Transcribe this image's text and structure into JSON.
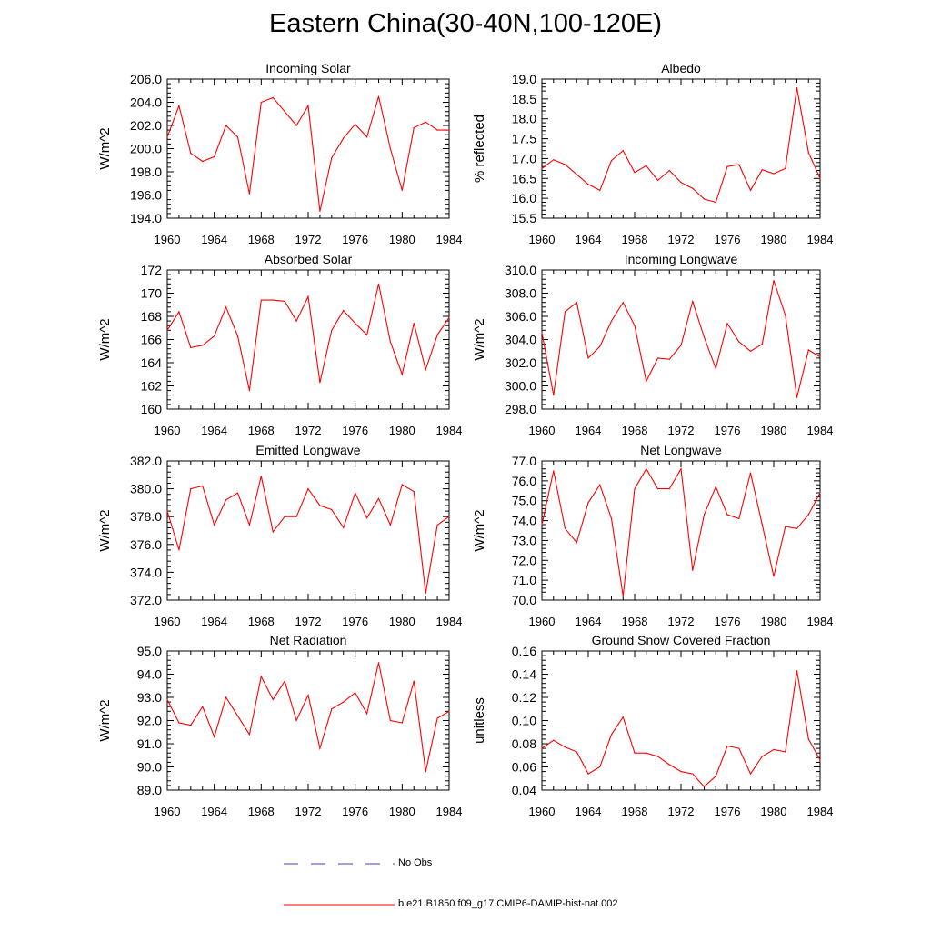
{
  "title": "Eastern China(30-40N,100-120E)",
  "colors": {
    "model_line": "#ff0000",
    "obs_line": "#4040c0",
    "axis": "#000000"
  },
  "legend": [
    {
      "label": "No Obs",
      "style": "dashed",
      "color": "#4040c0"
    },
    {
      "label": "b.e21.B1850.f09_g17.CMIP6-DAMIP-hist-nat.002",
      "style": "solid",
      "color": "#ff0000"
    }
  ],
  "chart_data": [
    {
      "type": "line",
      "title": "Incoming Solar",
      "xlabel": "",
      "ylabel": "W/m^2",
      "xlim": [
        1960,
        1984
      ],
      "xticks": [
        1960,
        1964,
        1968,
        1972,
        1976,
        1980,
        1984
      ],
      "ylim": [
        194,
        206
      ],
      "yticks": [
        "194.0",
        "196.0",
        "198.0",
        "200.0",
        "202.0",
        "204.0",
        "206.0"
      ],
      "x": [
        1960,
        1961,
        1962,
        1963,
        1964,
        1965,
        1966,
        1967,
        1968,
        1969,
        1970,
        1971,
        1972,
        1973,
        1974,
        1975,
        1976,
        1977,
        1978,
        1979,
        1980,
        1981,
        1982,
        1983,
        1984
      ],
      "series": [
        {
          "values": [
            201.0,
            203.7,
            199.6,
            198.9,
            199.3,
            202.0,
            201.0,
            196.1,
            204.0,
            204.4,
            203.2,
            202.0,
            203.7,
            194.6,
            199.2,
            200.9,
            202.1,
            201.0,
            204.5,
            200.0,
            196.4,
            201.8,
            202.3,
            201.6,
            201.6
          ]
        }
      ],
      "grid": false
    },
    {
      "type": "line",
      "title": "Albedo",
      "xlabel": "",
      "ylabel": "% reflected",
      "xlim": [
        1960,
        1984
      ],
      "xticks": [
        1960,
        1964,
        1968,
        1972,
        1976,
        1980,
        1984
      ],
      "ylim": [
        15.5,
        19.0
      ],
      "yticks": [
        "15.5",
        "16.0",
        "16.5",
        "17.0",
        "17.5",
        "18.0",
        "18.5",
        "19.0"
      ],
      "x": [
        1960,
        1961,
        1962,
        1963,
        1964,
        1965,
        1966,
        1967,
        1968,
        1969,
        1970,
        1971,
        1972,
        1973,
        1974,
        1975,
        1976,
        1977,
        1978,
        1979,
        1980,
        1981,
        1982,
        1983,
        1984
      ],
      "series": [
        {
          "values": [
            16.75,
            16.97,
            16.85,
            16.6,
            16.35,
            16.2,
            16.95,
            17.2,
            16.65,
            16.82,
            16.45,
            16.7,
            16.4,
            16.25,
            15.98,
            15.9,
            16.8,
            16.85,
            16.2,
            16.72,
            16.62,
            16.75,
            18.78,
            17.15,
            16.5
          ]
        }
      ],
      "grid": false
    },
    {
      "type": "line",
      "title": "Absorbed Solar",
      "xlabel": "",
      "ylabel": "W/m^2",
      "xlim": [
        1960,
        1984
      ],
      "xticks": [
        1960,
        1964,
        1968,
        1972,
        1976,
        1980,
        1984
      ],
      "ylim": [
        160,
        172
      ],
      "yticks": [
        "160",
        "162",
        "164",
        "166",
        "168",
        "170",
        "172"
      ],
      "x": [
        1960,
        1961,
        1962,
        1963,
        1964,
        1965,
        1966,
        1967,
        1968,
        1969,
        1970,
        1971,
        1972,
        1973,
        1974,
        1975,
        1976,
        1977,
        1978,
        1979,
        1980,
        1981,
        1982,
        1983,
        1984
      ],
      "series": [
        {
          "values": [
            166.8,
            168.4,
            165.3,
            165.5,
            166.3,
            168.8,
            166.3,
            161.6,
            169.4,
            169.4,
            169.3,
            167.6,
            169.7,
            162.3,
            166.8,
            168.5,
            167.4,
            166.4,
            170.8,
            165.8,
            163.0,
            167.4,
            163.4,
            166.4,
            167.9
          ]
        }
      ],
      "grid": false
    },
    {
      "type": "line",
      "title": "Incoming Longwave",
      "xlabel": "",
      "ylabel": "W/m^2",
      "xlim": [
        1960,
        1984
      ],
      "xticks": [
        1960,
        1964,
        1968,
        1972,
        1976,
        1980,
        1984
      ],
      "ylim": [
        298,
        310
      ],
      "yticks": [
        "298.0",
        "300.0",
        "302.0",
        "304.0",
        "306.0",
        "308.0",
        "310.0"
      ],
      "x": [
        1960,
        1961,
        1962,
        1963,
        1964,
        1965,
        1966,
        1967,
        1968,
        1969,
        1970,
        1971,
        1972,
        1973,
        1974,
        1975,
        1976,
        1977,
        1978,
        1979,
        1980,
        1981,
        1982,
        1983,
        1984
      ],
      "series": [
        {
          "values": [
            304.6,
            299.2,
            306.4,
            307.2,
            302.4,
            303.4,
            305.6,
            307.2,
            305.2,
            300.4,
            302.4,
            302.3,
            303.5,
            307.3,
            304.2,
            301.5,
            305.4,
            303.8,
            303.0,
            303.6,
            309.1,
            306.1,
            299.0,
            303.1,
            302.5
          ]
        }
      ],
      "grid": false
    },
    {
      "type": "line",
      "title": "Emitted Longwave",
      "xlabel": "",
      "ylabel": "W/m^2",
      "xlim": [
        1960,
        1984
      ],
      "xticks": [
        1960,
        1964,
        1968,
        1972,
        1976,
        1980,
        1984
      ],
      "ylim": [
        372,
        382
      ],
      "yticks": [
        "372.0",
        "374.0",
        "376.0",
        "378.0",
        "380.0",
        "382.0"
      ],
      "x": [
        1960,
        1961,
        1962,
        1963,
        1964,
        1965,
        1966,
        1967,
        1968,
        1969,
        1970,
        1971,
        1972,
        1973,
        1974,
        1975,
        1976,
        1977,
        1978,
        1979,
        1980,
        1981,
        1982,
        1983,
        1984
      ],
      "series": [
        {
          "values": [
            378.4,
            375.6,
            380.0,
            380.2,
            377.4,
            379.2,
            379.7,
            377.4,
            380.9,
            376.9,
            378.0,
            378.0,
            380.0,
            378.8,
            378.5,
            377.2,
            379.7,
            377.9,
            379.3,
            377.4,
            380.3,
            379.8,
            372.5,
            377.4,
            378.0
          ]
        }
      ],
      "grid": false
    },
    {
      "type": "line",
      "title": "Net Longwave",
      "xlabel": "",
      "ylabel": "W/m^2",
      "xlim": [
        1960,
        1984
      ],
      "xticks": [
        1960,
        1964,
        1968,
        1972,
        1976,
        1980,
        1984
      ],
      "ylim": [
        70,
        77
      ],
      "yticks": [
        "70.0",
        "71.0",
        "72.0",
        "73.0",
        "74.0",
        "75.0",
        "76.0",
        "77.0"
      ],
      "x": [
        1960,
        1961,
        1962,
        1963,
        1964,
        1965,
        1966,
        1967,
        1968,
        1969,
        1970,
        1971,
        1972,
        1973,
        1974,
        1975,
        1976,
        1977,
        1978,
        1979,
        1980,
        1981,
        1982,
        1983,
        1984
      ],
      "series": [
        {
          "values": [
            73.8,
            76.5,
            73.6,
            72.9,
            74.9,
            75.8,
            74.1,
            70.2,
            75.6,
            76.6,
            75.6,
            75.6,
            76.6,
            71.5,
            74.3,
            75.7,
            74.3,
            74.1,
            76.4,
            73.8,
            71.2,
            73.7,
            73.6,
            74.3,
            75.4
          ]
        }
      ],
      "grid": false
    },
    {
      "type": "line",
      "title": "Net Radiation",
      "xlabel": "",
      "ylabel": "W/m^2",
      "xlim": [
        1960,
        1984
      ],
      "xticks": [
        1960,
        1964,
        1968,
        1972,
        1976,
        1980,
        1984
      ],
      "ylim": [
        89,
        95
      ],
      "yticks": [
        "89.0",
        "90.0",
        "91.0",
        "92.0",
        "93.0",
        "94.0",
        "95.0"
      ],
      "x": [
        1960,
        1961,
        1962,
        1963,
        1964,
        1965,
        1966,
        1967,
        1968,
        1969,
        1970,
        1971,
        1972,
        1973,
        1974,
        1975,
        1976,
        1977,
        1978,
        1979,
        1980,
        1981,
        1982,
        1983,
        1984
      ],
      "series": [
        {
          "values": [
            92.9,
            91.9,
            91.8,
            92.6,
            91.3,
            93.0,
            92.2,
            91.4,
            93.9,
            92.9,
            93.7,
            92.0,
            93.1,
            90.8,
            92.5,
            92.8,
            93.2,
            92.3,
            94.5,
            92.0,
            91.9,
            93.7,
            89.8,
            92.1,
            92.4
          ]
        }
      ],
      "grid": false
    },
    {
      "type": "line",
      "title": "Ground Snow Covered Fraction",
      "xlabel": "",
      "ylabel": "unitless",
      "xlim": [
        1960,
        1984
      ],
      "xticks": [
        1960,
        1964,
        1968,
        1972,
        1976,
        1980,
        1984
      ],
      "ylim": [
        0.04,
        0.16
      ],
      "yticks": [
        "0.04",
        "0.06",
        "0.08",
        "0.10",
        "0.12",
        "0.14",
        "0.16"
      ],
      "x": [
        1960,
        1961,
        1962,
        1963,
        1964,
        1965,
        1966,
        1967,
        1968,
        1969,
        1970,
        1971,
        1972,
        1973,
        1974,
        1975,
        1976,
        1977,
        1978,
        1979,
        1980,
        1981,
        1982,
        1983,
        1984
      ],
      "series": [
        {
          "values": [
            0.076,
            0.083,
            0.077,
            0.073,
            0.054,
            0.06,
            0.088,
            0.103,
            0.072,
            0.072,
            0.069,
            0.062,
            0.056,
            0.054,
            0.043,
            0.052,
            0.078,
            0.076,
            0.054,
            0.069,
            0.075,
            0.073,
            0.143,
            0.084,
            0.066
          ]
        }
      ],
      "grid": false
    }
  ]
}
